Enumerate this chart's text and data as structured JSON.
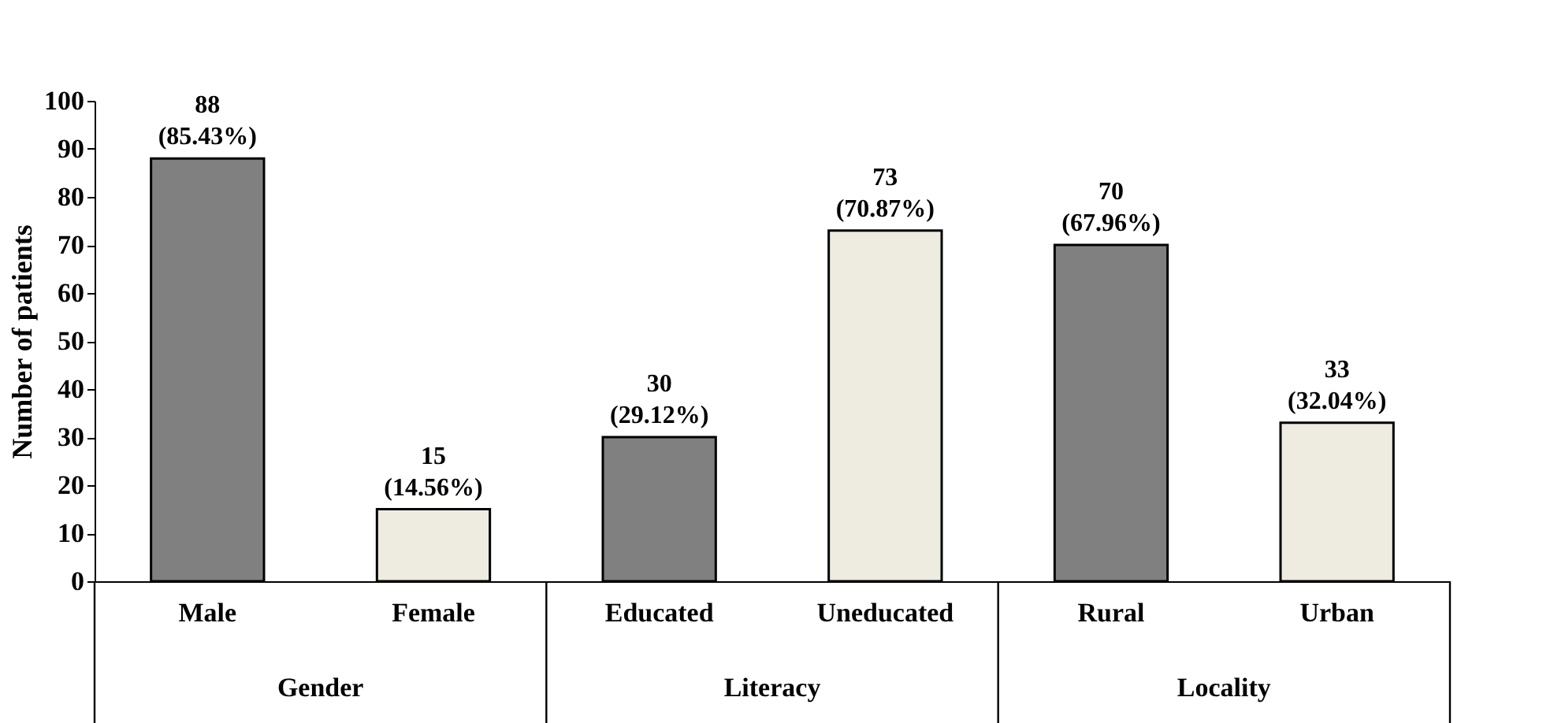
{
  "chart_data": {
    "type": "bar",
    "ylabel": "Number of patients",
    "categories": [
      "Male",
      "Female",
      "Educated",
      "Uneducated",
      "Rural",
      "Urban"
    ],
    "values": [
      88,
      15,
      30,
      73,
      70,
      33
    ],
    "colors": [
      "#808080",
      "#eeece1",
      "#808080",
      "#eeece1",
      "#808080",
      "#eeece1"
    ],
    "value_labels": [
      "88 (85.43%)",
      "15 (14.56%)",
      "30 (29.12%)",
      "73 (70.87%)",
      "70 (67.96%)",
      "33 (32.04%)"
    ],
    "annotations": [
      "Gender",
      "Literacy",
      "Locality"
    ],
    "ylim": [
      0,
      100
    ],
    "yticks": [
      0,
      10,
      20,
      30,
      40,
      50,
      60,
      70,
      80,
      90,
      100
    ],
    "grid": false
  }
}
